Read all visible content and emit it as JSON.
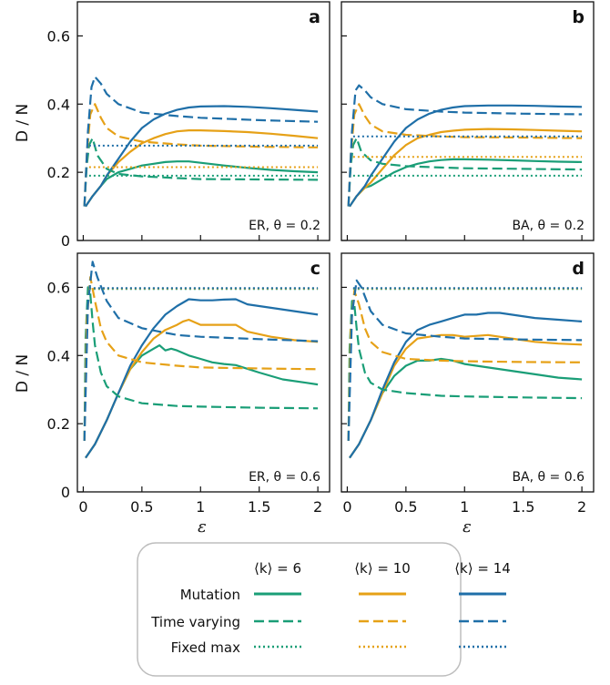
{
  "legend": {
    "columns": [
      "⟨k⟩ = 6",
      "⟨k⟩ = 10",
      "⟨k⟩ = 14"
    ],
    "rows": [
      {
        "label": "Mutation",
        "dash": "solid"
      },
      {
        "label": "Time varying",
        "dash": "dashed"
      },
      {
        "label": "Fixed max",
        "dash": "dotted"
      }
    ]
  },
  "colors": {
    "k6": "#1a9e77",
    "k10": "#e6a117",
    "k14": "#1f6fa8"
  },
  "xlabel": "ε",
  "ylabel": "D / N",
  "chart_data": [
    {
      "type": "line",
      "panel": "a",
      "note": "ER, θ = 0.2",
      "xlim": [
        -0.05,
        2.1
      ],
      "ylim": [
        0,
        0.7
      ],
      "xticks": [
        0,
        0.5,
        1,
        1.5,
        2
      ],
      "yticks": [
        0,
        0.2,
        0.4,
        0.6
      ],
      "series": [
        {
          "k": 6,
          "style": "solid",
          "x": [
            0.02,
            0.08,
            0.15,
            0.2,
            0.3,
            0.4,
            0.5,
            0.6,
            0.7,
            0.8,
            0.9,
            1.0,
            1.2,
            1.4,
            1.6,
            1.8,
            2.0
          ],
          "y": [
            0.1,
            0.13,
            0.16,
            0.18,
            0.2,
            0.21,
            0.22,
            0.225,
            0.23,
            0.232,
            0.232,
            0.228,
            0.22,
            0.213,
            0.207,
            0.203,
            0.2
          ]
        },
        {
          "k": 10,
          "style": "solid",
          "x": [
            0.02,
            0.08,
            0.15,
            0.2,
            0.3,
            0.4,
            0.5,
            0.6,
            0.7,
            0.8,
            0.9,
            1.0,
            1.2,
            1.4,
            1.6,
            1.8,
            2.0
          ],
          "y": [
            0.1,
            0.13,
            0.16,
            0.19,
            0.23,
            0.26,
            0.285,
            0.3,
            0.312,
            0.32,
            0.323,
            0.323,
            0.321,
            0.318,
            0.313,
            0.307,
            0.3
          ]
        },
        {
          "k": 14,
          "style": "solid",
          "x": [
            0.02,
            0.08,
            0.15,
            0.2,
            0.3,
            0.4,
            0.5,
            0.6,
            0.7,
            0.8,
            0.9,
            1.0,
            1.2,
            1.4,
            1.6,
            1.8,
            2.0
          ],
          "y": [
            0.1,
            0.13,
            0.16,
            0.19,
            0.24,
            0.29,
            0.33,
            0.355,
            0.372,
            0.383,
            0.39,
            0.393,
            0.394,
            0.392,
            0.388,
            0.383,
            0.378
          ]
        },
        {
          "k": 6,
          "style": "dashed",
          "x": [
            0.01,
            0.03,
            0.05,
            0.08,
            0.12,
            0.2,
            0.3,
            0.5,
            0.8,
            1.0,
            1.5,
            2.0
          ],
          "y": [
            0.1,
            0.22,
            0.28,
            0.3,
            0.25,
            0.21,
            0.195,
            0.188,
            0.183,
            0.18,
            0.179,
            0.178
          ]
        },
        {
          "k": 10,
          "style": "dashed",
          "x": [
            0.01,
            0.03,
            0.06,
            0.1,
            0.15,
            0.2,
            0.3,
            0.5,
            0.8,
            1.0,
            1.5,
            2.0
          ],
          "y": [
            0.1,
            0.25,
            0.37,
            0.4,
            0.36,
            0.33,
            0.305,
            0.29,
            0.282,
            0.278,
            0.275,
            0.273
          ]
        },
        {
          "k": 14,
          "style": "dashed",
          "x": [
            0.01,
            0.04,
            0.07,
            0.1,
            0.15,
            0.2,
            0.3,
            0.5,
            0.8,
            1.0,
            1.5,
            2.0
          ],
          "y": [
            0.1,
            0.32,
            0.45,
            0.48,
            0.46,
            0.43,
            0.4,
            0.375,
            0.365,
            0.36,
            0.353,
            0.348
          ]
        },
        {
          "k": 6,
          "style": "dotted",
          "x": [
            0.05,
            2.0
          ],
          "y": [
            0.19,
            0.19
          ]
        },
        {
          "k": 10,
          "style": "dotted",
          "x": [
            0.05,
            2.0
          ],
          "y": [
            0.215,
            0.215
          ]
        },
        {
          "k": 14,
          "style": "dotted",
          "x": [
            0.05,
            2.0
          ],
          "y": [
            0.278,
            0.278
          ]
        }
      ]
    },
    {
      "type": "line",
      "panel": "b",
      "note": "BA, θ = 0.2",
      "xlim": [
        -0.05,
        2.1
      ],
      "ylim": [
        0,
        0.7
      ],
      "xticks": [
        0,
        0.5,
        1,
        1.5,
        2
      ],
      "yticks": [
        0,
        0.2,
        0.4,
        0.6
      ],
      "series": [
        {
          "k": 6,
          "style": "solid",
          "x": [
            0.02,
            0.08,
            0.15,
            0.2,
            0.3,
            0.4,
            0.5,
            0.6,
            0.7,
            0.8,
            0.9,
            1.0,
            1.2,
            1.4,
            1.6,
            1.8,
            2.0
          ],
          "y": [
            0.1,
            0.13,
            0.155,
            0.16,
            0.18,
            0.2,
            0.215,
            0.225,
            0.232,
            0.236,
            0.238,
            0.238,
            0.237,
            0.235,
            0.233,
            0.231,
            0.23
          ]
        },
        {
          "k": 10,
          "style": "solid",
          "x": [
            0.02,
            0.08,
            0.15,
            0.2,
            0.3,
            0.4,
            0.5,
            0.6,
            0.7,
            0.8,
            0.9,
            1.0,
            1.2,
            1.4,
            1.6,
            1.8,
            2.0
          ],
          "y": [
            0.1,
            0.13,
            0.155,
            0.17,
            0.21,
            0.25,
            0.28,
            0.3,
            0.31,
            0.318,
            0.322,
            0.325,
            0.327,
            0.326,
            0.324,
            0.322,
            0.32
          ]
        },
        {
          "k": 14,
          "style": "solid",
          "x": [
            0.02,
            0.08,
            0.15,
            0.2,
            0.3,
            0.4,
            0.5,
            0.6,
            0.7,
            0.8,
            0.9,
            1.0,
            1.2,
            1.4,
            1.6,
            1.8,
            2.0
          ],
          "y": [
            0.1,
            0.13,
            0.16,
            0.19,
            0.24,
            0.29,
            0.33,
            0.355,
            0.372,
            0.383,
            0.39,
            0.394,
            0.396,
            0.396,
            0.395,
            0.393,
            0.392
          ]
        },
        {
          "k": 6,
          "style": "dashed",
          "x": [
            0.01,
            0.03,
            0.05,
            0.08,
            0.12,
            0.2,
            0.3,
            0.5,
            0.8,
            1.0,
            1.5,
            2.0
          ],
          "y": [
            0.1,
            0.22,
            0.28,
            0.3,
            0.26,
            0.235,
            0.225,
            0.218,
            0.214,
            0.212,
            0.21,
            0.208
          ]
        },
        {
          "k": 10,
          "style": "dashed",
          "x": [
            0.01,
            0.03,
            0.06,
            0.1,
            0.15,
            0.2,
            0.3,
            0.5,
            0.8,
            1.0,
            1.5,
            2.0
          ],
          "y": [
            0.1,
            0.25,
            0.37,
            0.4,
            0.365,
            0.34,
            0.32,
            0.31,
            0.305,
            0.303,
            0.302,
            0.3
          ]
        },
        {
          "k": 14,
          "style": "dashed",
          "x": [
            0.01,
            0.04,
            0.07,
            0.1,
            0.15,
            0.2,
            0.3,
            0.5,
            0.8,
            1.0,
            1.5,
            2.0
          ],
          "y": [
            0.1,
            0.32,
            0.44,
            0.455,
            0.44,
            0.42,
            0.4,
            0.385,
            0.378,
            0.375,
            0.372,
            0.37
          ]
        },
        {
          "k": 6,
          "style": "dotted",
          "x": [
            0.05,
            2.0
          ],
          "y": [
            0.19,
            0.19
          ]
        },
        {
          "k": 10,
          "style": "dotted",
          "x": [
            0.05,
            2.0
          ],
          "y": [
            0.245,
            0.245
          ]
        },
        {
          "k": 14,
          "style": "dotted",
          "x": [
            0.05,
            2.0
          ],
          "y": [
            0.305,
            0.305
          ]
        }
      ]
    },
    {
      "type": "line",
      "panel": "c",
      "note": "ER, θ = 0.6",
      "xlim": [
        -0.05,
        2.1
      ],
      "ylim": [
        0,
        0.7
      ],
      "xticks": [
        0,
        0.5,
        1,
        1.5,
        2
      ],
      "yticks": [
        0,
        0.2,
        0.4,
        0.6
      ],
      "series": [
        {
          "k": 6,
          "style": "solid",
          "x": [
            0.02,
            0.1,
            0.2,
            0.3,
            0.4,
            0.5,
            0.6,
            0.65,
            0.7,
            0.75,
            0.8,
            0.9,
            1.0,
            1.1,
            1.2,
            1.3,
            1.5,
            1.7,
            1.9,
            2.0
          ],
          "y": [
            0.1,
            0.14,
            0.21,
            0.29,
            0.36,
            0.4,
            0.42,
            0.43,
            0.415,
            0.42,
            0.415,
            0.4,
            0.39,
            0.38,
            0.375,
            0.372,
            0.35,
            0.33,
            0.32,
            0.315
          ]
        },
        {
          "k": 10,
          "style": "solid",
          "x": [
            0.02,
            0.1,
            0.2,
            0.3,
            0.4,
            0.5,
            0.6,
            0.7,
            0.8,
            0.85,
            0.9,
            1.0,
            1.1,
            1.2,
            1.3,
            1.4,
            1.6,
            1.8,
            2.0
          ],
          "y": [
            0.1,
            0.14,
            0.21,
            0.29,
            0.36,
            0.41,
            0.45,
            0.475,
            0.49,
            0.5,
            0.505,
            0.49,
            0.49,
            0.49,
            0.49,
            0.47,
            0.455,
            0.445,
            0.44
          ]
        },
        {
          "k": 14,
          "style": "solid",
          "x": [
            0.02,
            0.1,
            0.2,
            0.3,
            0.4,
            0.5,
            0.6,
            0.7,
            0.8,
            0.9,
            1.0,
            1.1,
            1.2,
            1.3,
            1.4,
            1.6,
            1.8,
            2.0
          ],
          "y": [
            0.1,
            0.14,
            0.21,
            0.29,
            0.37,
            0.43,
            0.48,
            0.52,
            0.545,
            0.565,
            0.562,
            0.562,
            0.564,
            0.565,
            0.55,
            0.54,
            0.53,
            0.52
          ]
        },
        {
          "k": 6,
          "style": "dashed",
          "x": [
            0.01,
            0.02,
            0.04,
            0.06,
            0.08,
            0.1,
            0.15,
            0.2,
            0.3,
            0.5,
            0.8,
            1.0,
            1.5,
            2.0
          ],
          "y": [
            0.15,
            0.45,
            0.6,
            0.58,
            0.5,
            0.43,
            0.35,
            0.31,
            0.28,
            0.26,
            0.252,
            0.25,
            0.247,
            0.245
          ]
        },
        {
          "k": 10,
          "style": "dashed",
          "x": [
            0.01,
            0.03,
            0.06,
            0.1,
            0.15,
            0.2,
            0.3,
            0.5,
            0.8,
            1.0,
            1.5,
            2.0
          ],
          "y": [
            0.15,
            0.5,
            0.63,
            0.56,
            0.48,
            0.44,
            0.4,
            0.38,
            0.37,
            0.365,
            0.362,
            0.36
          ]
        },
        {
          "k": 14,
          "style": "dashed",
          "x": [
            0.01,
            0.04,
            0.08,
            0.12,
            0.2,
            0.3,
            0.5,
            0.8,
            1.0,
            1.5,
            2.0
          ],
          "y": [
            0.15,
            0.55,
            0.675,
            0.63,
            0.56,
            0.51,
            0.48,
            0.46,
            0.455,
            0.448,
            0.442
          ]
        },
        {
          "k": 6,
          "style": "dotted",
          "x": [
            0.05,
            2.0
          ],
          "y": [
            0.595,
            0.595
          ]
        },
        {
          "k": 10,
          "style": "dotted",
          "x": [
            0.05,
            2.0
          ],
          "y": [
            0.597,
            0.597
          ]
        },
        {
          "k": 14,
          "style": "dotted",
          "x": [
            0.05,
            2.0
          ],
          "y": [
            0.598,
            0.598
          ]
        }
      ]
    },
    {
      "type": "line",
      "panel": "d",
      "note": "BA, θ = 0.6",
      "xlim": [
        -0.05,
        2.1
      ],
      "ylim": [
        0,
        0.7
      ],
      "xticks": [
        0,
        0.5,
        1,
        1.5,
        2
      ],
      "yticks": [
        0,
        0.2,
        0.4,
        0.6
      ],
      "series": [
        {
          "k": 6,
          "style": "solid",
          "x": [
            0.02,
            0.1,
            0.2,
            0.3,
            0.4,
            0.5,
            0.6,
            0.7,
            0.8,
            0.9,
            1.0,
            1.2,
            1.4,
            1.6,
            1.8,
            2.0
          ],
          "y": [
            0.1,
            0.14,
            0.21,
            0.29,
            0.34,
            0.37,
            0.385,
            0.385,
            0.39,
            0.385,
            0.375,
            0.365,
            0.355,
            0.345,
            0.335,
            0.33
          ]
        },
        {
          "k": 10,
          "style": "solid",
          "x": [
            0.02,
            0.1,
            0.2,
            0.3,
            0.4,
            0.5,
            0.6,
            0.7,
            0.8,
            0.9,
            1.0,
            1.2,
            1.4,
            1.6,
            1.8,
            2.0
          ],
          "y": [
            0.1,
            0.14,
            0.21,
            0.29,
            0.37,
            0.42,
            0.45,
            0.455,
            0.46,
            0.46,
            0.455,
            0.46,
            0.45,
            0.44,
            0.435,
            0.432
          ]
        },
        {
          "k": 14,
          "style": "solid",
          "x": [
            0.02,
            0.1,
            0.2,
            0.3,
            0.4,
            0.5,
            0.6,
            0.7,
            0.8,
            0.9,
            1.0,
            1.1,
            1.2,
            1.3,
            1.4,
            1.6,
            1.8,
            2.0
          ],
          "y": [
            0.1,
            0.14,
            0.21,
            0.3,
            0.38,
            0.44,
            0.475,
            0.49,
            0.5,
            0.51,
            0.52,
            0.52,
            0.525,
            0.525,
            0.52,
            0.51,
            0.505,
            0.5
          ]
        },
        {
          "k": 6,
          "style": "dashed",
          "x": [
            0.01,
            0.02,
            0.04,
            0.06,
            0.08,
            0.1,
            0.15,
            0.2,
            0.3,
            0.5,
            0.8,
            1.0,
            1.5,
            2.0
          ],
          "y": [
            0.15,
            0.42,
            0.56,
            0.55,
            0.48,
            0.42,
            0.35,
            0.32,
            0.3,
            0.29,
            0.282,
            0.28,
            0.277,
            0.275
          ]
        },
        {
          "k": 10,
          "style": "dashed",
          "x": [
            0.01,
            0.03,
            0.06,
            0.1,
            0.15,
            0.2,
            0.3,
            0.5,
            0.8,
            1.0,
            1.5,
            2.0
          ],
          "y": [
            0.15,
            0.48,
            0.59,
            0.55,
            0.48,
            0.44,
            0.41,
            0.39,
            0.385,
            0.383,
            0.381,
            0.38
          ]
        },
        {
          "k": 14,
          "style": "dashed",
          "x": [
            0.01,
            0.04,
            0.08,
            0.12,
            0.2,
            0.3,
            0.5,
            0.8,
            1.0,
            1.5,
            2.0
          ],
          "y": [
            0.15,
            0.52,
            0.62,
            0.6,
            0.53,
            0.49,
            0.465,
            0.455,
            0.45,
            0.447,
            0.445
          ]
        },
        {
          "k": 6,
          "style": "dotted",
          "x": [
            0.05,
            2.0
          ],
          "y": [
            0.595,
            0.595
          ]
        },
        {
          "k": 10,
          "style": "dotted",
          "x": [
            0.05,
            2.0
          ],
          "y": [
            0.597,
            0.597
          ]
        },
        {
          "k": 14,
          "style": "dotted",
          "x": [
            0.05,
            2.0
          ],
          "y": [
            0.598,
            0.598
          ]
        }
      ]
    }
  ]
}
